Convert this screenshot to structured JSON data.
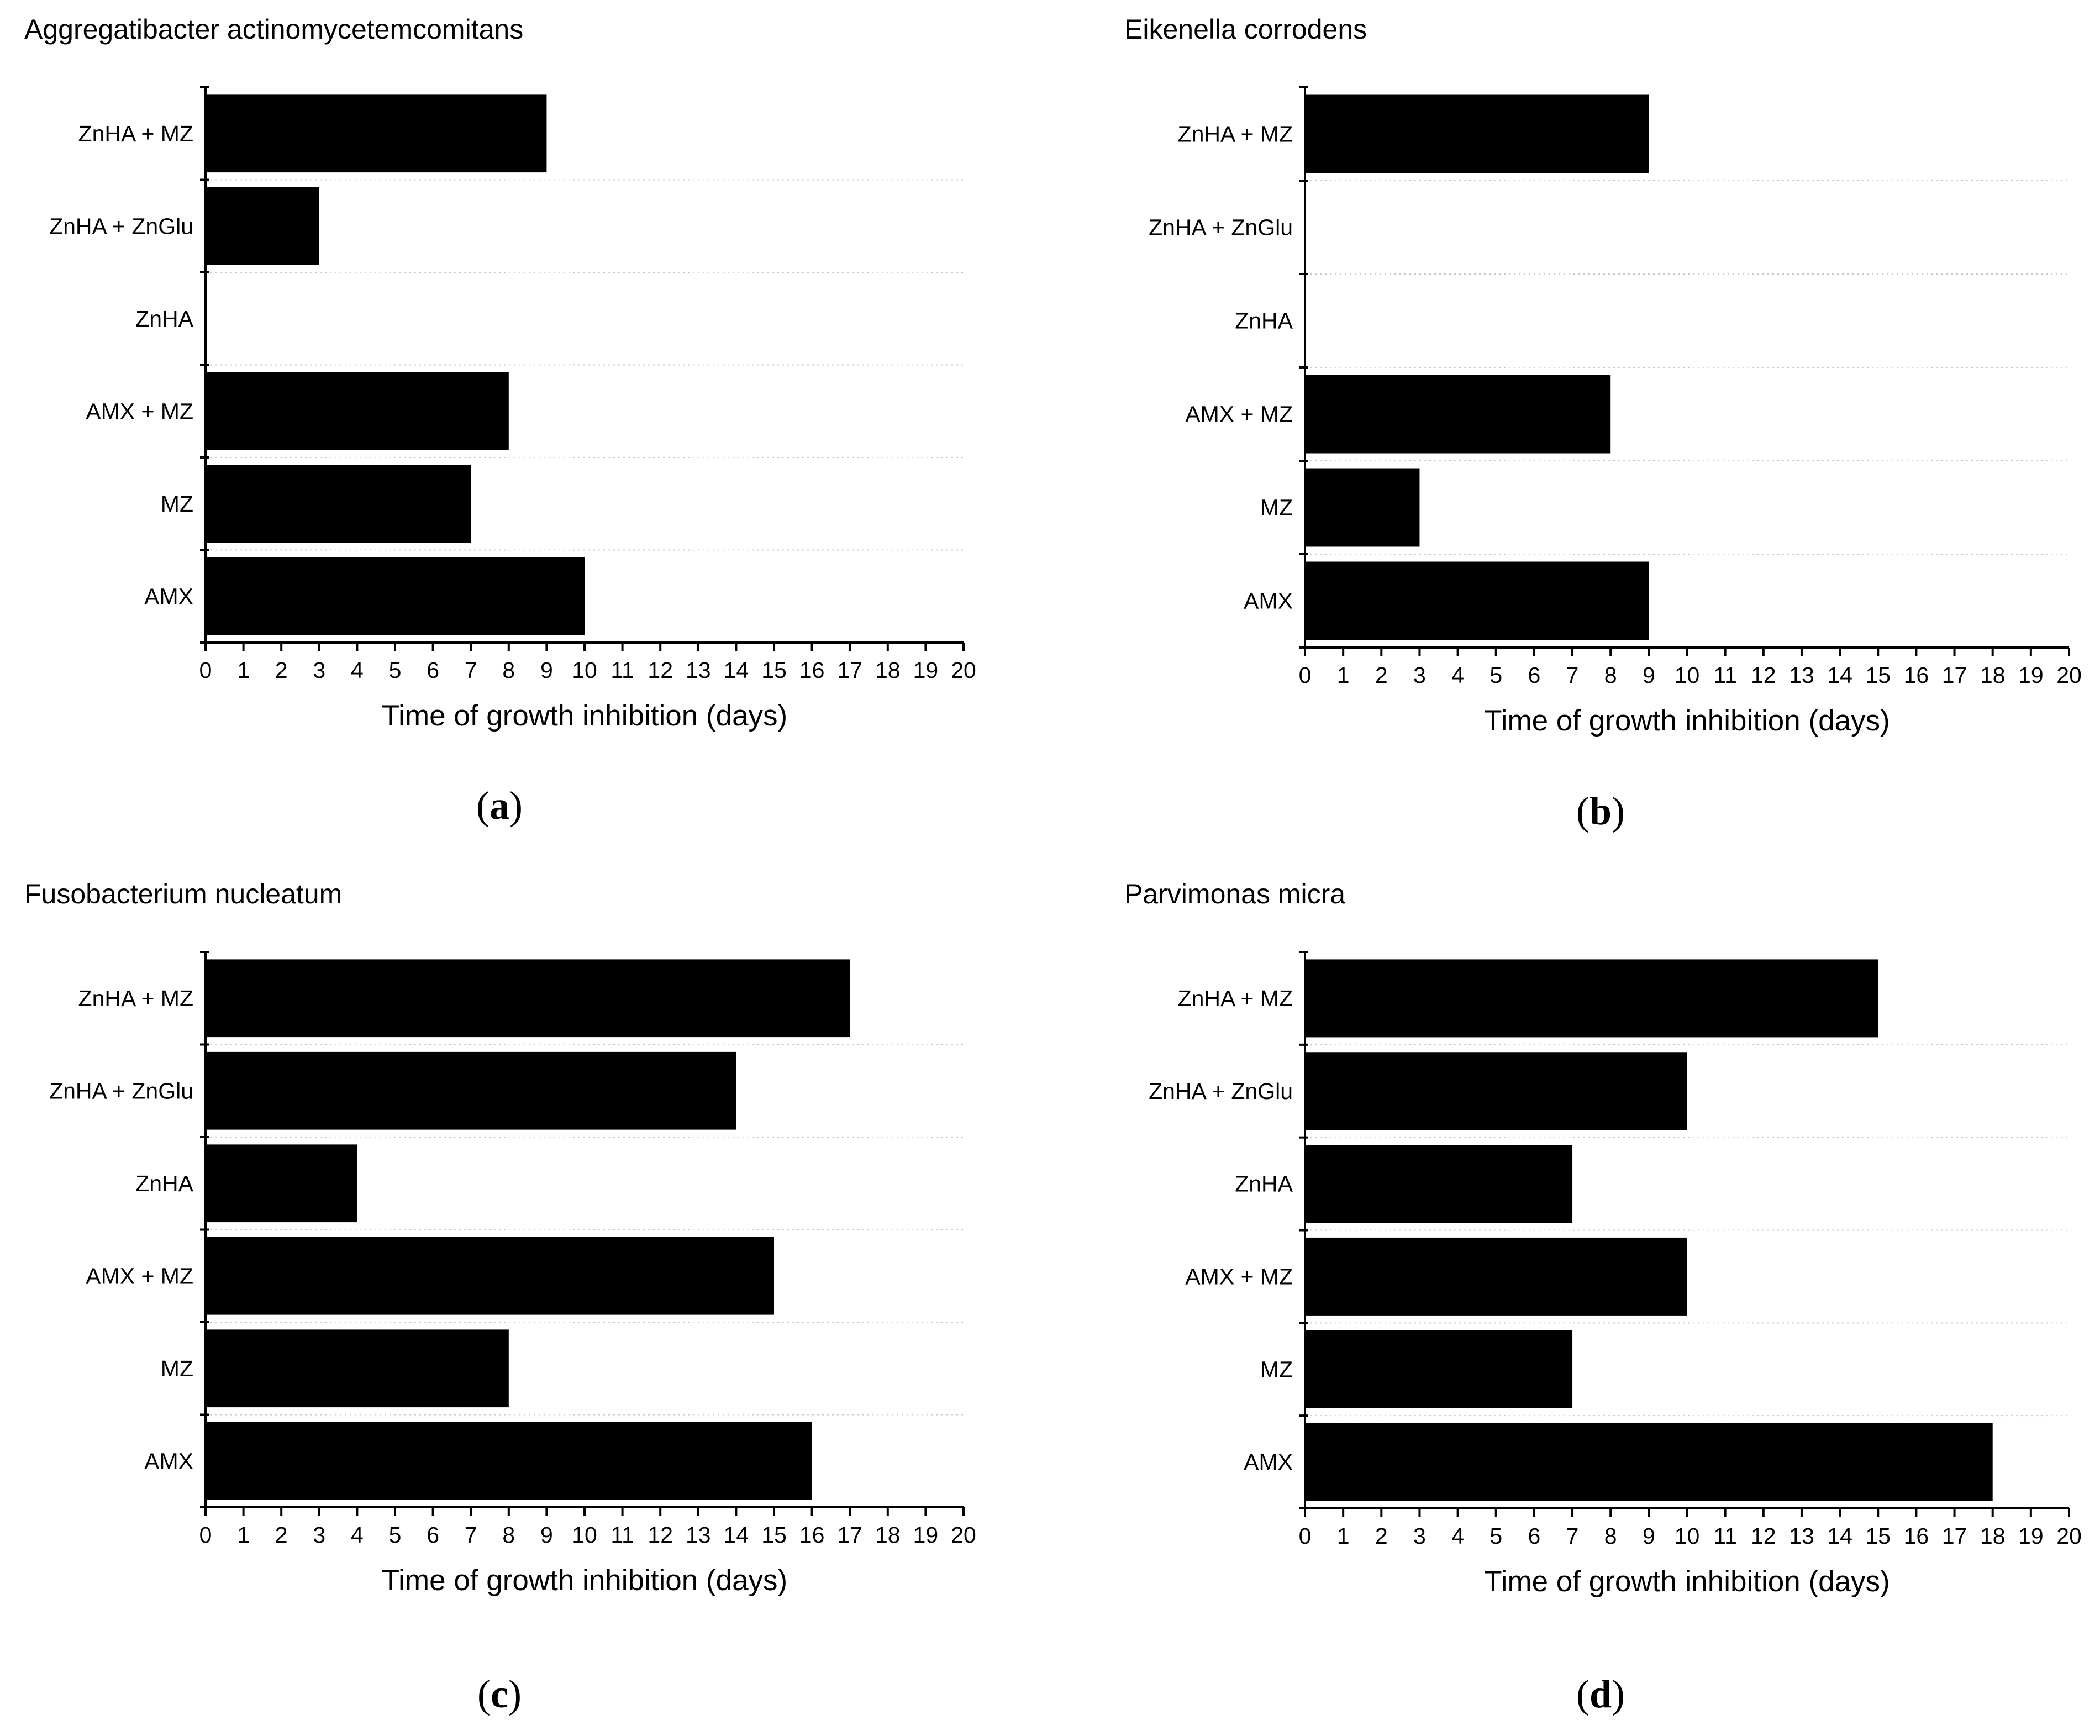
{
  "chart_data": [
    {
      "type": "bar",
      "orientation": "horizontal",
      "panel_label": "a",
      "title": "Aggregatibacter actinomycetemcomitans",
      "categories": [
        "ZnHA + MZ",
        "ZnHA + ZnGlu",
        "ZnHA",
        "AMX + MZ",
        "MZ",
        "AMX"
      ],
      "values": [
        9,
        3,
        0,
        8,
        7,
        10
      ],
      "xlabel": "Time of growth inhibition (days)",
      "ylabel": "",
      "xlim": [
        0,
        20
      ],
      "xticks": [
        "0",
        "1",
        "2",
        "3",
        "4",
        "5",
        "6",
        "7",
        "8",
        "9",
        "10",
        "11",
        "12",
        "13",
        "14",
        "15",
        "16",
        "17",
        "18",
        "19",
        "20"
      ],
      "bar_color": "#000000",
      "grid": "horizontal dotted lines between categories"
    },
    {
      "type": "bar",
      "orientation": "horizontal",
      "panel_label": "b",
      "title": "Eikenella corrodens",
      "categories": [
        "ZnHA + MZ",
        "ZnHA + ZnGlu",
        "ZnHA",
        "AMX + MZ",
        "MZ",
        "AMX"
      ],
      "values": [
        9,
        0,
        0,
        8,
        3,
        9
      ],
      "xlabel": "Time of growth inhibition (days)",
      "ylabel": "",
      "xlim": [
        0,
        20
      ],
      "xticks": [
        "0",
        "1",
        "2",
        "3",
        "4",
        "5",
        "6",
        "7",
        "8",
        "9",
        "10",
        "11",
        "12",
        "13",
        "14",
        "15",
        "16",
        "17",
        "18",
        "19",
        "20"
      ],
      "bar_color": "#000000",
      "grid": "horizontal dotted lines between categories"
    },
    {
      "type": "bar",
      "orientation": "horizontal",
      "panel_label": "c",
      "title": "Fusobacterium nucleatum",
      "categories": [
        "ZnHA + MZ",
        "ZnHA + ZnGlu",
        "ZnHA",
        "AMX + MZ",
        "MZ",
        "AMX"
      ],
      "values": [
        17,
        14,
        4,
        15,
        8,
        16
      ],
      "xlabel": "Time of growth inhibition (days)",
      "ylabel": "",
      "xlim": [
        0,
        20
      ],
      "xticks": [
        "0",
        "1",
        "2",
        "3",
        "4",
        "5",
        "6",
        "7",
        "8",
        "9",
        "10",
        "11",
        "12",
        "13",
        "14",
        "15",
        "16",
        "17",
        "18",
        "19",
        "20"
      ],
      "bar_color": "#000000",
      "grid": "horizontal dotted lines between categories"
    },
    {
      "type": "bar",
      "orientation": "horizontal",
      "panel_label": "d",
      "title": "Parvimonas micra",
      "categories": [
        "ZnHA + MZ",
        "ZnHA + ZnGlu",
        "ZnHA",
        "AMX + MZ",
        "MZ",
        "AMX"
      ],
      "values": [
        15,
        10,
        7,
        10,
        7,
        18
      ],
      "xlabel": "Time of growth inhibition (days)",
      "ylabel": "",
      "xlim": [
        0,
        20
      ],
      "xticks": [
        "0",
        "1",
        "2",
        "3",
        "4",
        "5",
        "6",
        "7",
        "8",
        "9",
        "10",
        "11",
        "12",
        "13",
        "14",
        "15",
        "16",
        "17",
        "18",
        "19",
        "20"
      ],
      "bar_color": "#000000",
      "grid": "horizontal dotted lines between categories"
    }
  ]
}
